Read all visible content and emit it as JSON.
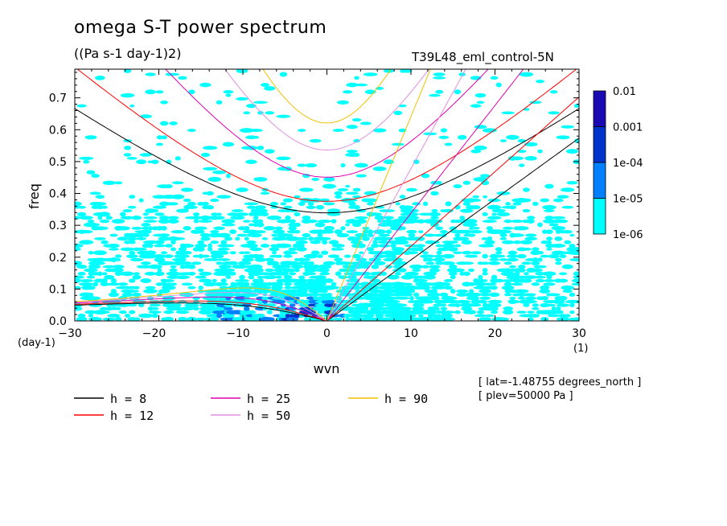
{
  "title": "omega S-T power spectrum",
  "units": "((Pa s-1 day-1)2)",
  "run_name": "T39L48_eml_control-5N",
  "info": [
    "[ lat=-1.48755 degrees_north ]",
    "[ plev=50000 Pa ]"
  ],
  "chart_data": {
    "type": "contour",
    "xlabel": "wvn",
    "ylabel": "freq",
    "x_unit_label": "(1)",
    "y_unit_label": "(day-1)",
    "xlim": [
      -30,
      30
    ],
    "ylim": [
      0,
      0.79
    ],
    "x_ticks": [
      -30,
      -20,
      -10,
      0,
      10,
      20,
      30
    ],
    "x_tick_labels": [
      "-30",
      "-20",
      "-10",
      "0",
      "10",
      "20",
      "30"
    ],
    "y_ticks": [
      0.0,
      0.1,
      0.2,
      0.3,
      0.4,
      0.5,
      0.6,
      0.7
    ],
    "y_tick_labels": [
      "0.0",
      "0.1",
      "0.2",
      "0.3",
      "0.4",
      "0.5",
      "0.6",
      "0.7"
    ],
    "colorbar": {
      "labels": [
        "1e-06",
        "1e-05",
        "1e-04",
        "0.001",
        "0.01"
      ],
      "colors": [
        "#00ffff",
        "#0080ff",
        "#0033cc",
        "#1a0ab4",
        "#4d0aaa"
      ]
    },
    "contour_regions": [
      {
        "level": "1e-06",
        "description": "speckled band of power spectrum between freq 0 and about 0.45, strongest at low wavenumbers"
      },
      {
        "level": "1e-05",
        "description": "patches near wvn -12 to 2 at low freq below 0.1"
      },
      {
        "level": "1e-04",
        "description": "small isolated patches near wvn -3 to 0 at freq about 0.05"
      }
    ],
    "series": [
      {
        "name": "h =  8",
        "color": "#000000",
        "equivalent_depth": 8
      },
      {
        "name": "h = 12",
        "color": "#ff0000",
        "equivalent_depth": 12
      },
      {
        "name": "h = 25",
        "color": "#e000b0",
        "equivalent_depth": 25
      },
      {
        "name": "h = 50",
        "color": "#e090e0",
        "equivalent_depth": 50
      },
      {
        "name": "h = 90",
        "color": "#f0c000",
        "equivalent_depth": 90
      }
    ],
    "legend_position": "bottom-left"
  }
}
